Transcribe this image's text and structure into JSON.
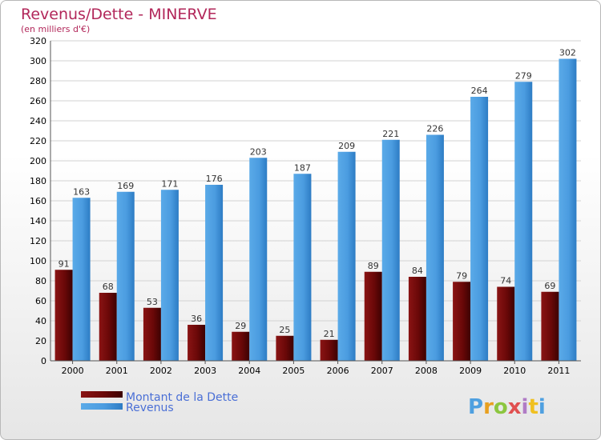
{
  "chart_data": {
    "type": "bar",
    "title": "Revenus/Dette - MINERVE",
    "subtitle": "(en milliers d'€)",
    "categories": [
      "2000",
      "2001",
      "2002",
      "2003",
      "2004",
      "2005",
      "2006",
      "2007",
      "2008",
      "2009",
      "2010",
      "2011"
    ],
    "series": [
      {
        "name": "Montant de la Dette",
        "color": "#7a0c0c",
        "values": [
          91,
          68,
          53,
          36,
          29,
          25,
          21,
          89,
          84,
          79,
          74,
          69
        ]
      },
      {
        "name": "Revenus",
        "color": "#4fa0e0",
        "values": [
          163,
          169,
          171,
          176,
          203,
          187,
          209,
          221,
          226,
          264,
          279,
          302
        ]
      }
    ],
    "ylim": [
      0,
      320
    ],
    "yticks": [
      0,
      20,
      40,
      60,
      80,
      100,
      120,
      140,
      160,
      180,
      200,
      220,
      240,
      260,
      280,
      300,
      320
    ],
    "grid": true,
    "legend": "bottom-left"
  },
  "brand": {
    "letters": [
      "P",
      "r",
      "o",
      "x",
      "i",
      "t",
      "i"
    ],
    "colors": [
      "#4fa0e0",
      "#e8a020",
      "#8cc63f",
      "#e05050",
      "#b07cc6",
      "#f0c020",
      "#4fa0e0"
    ]
  }
}
